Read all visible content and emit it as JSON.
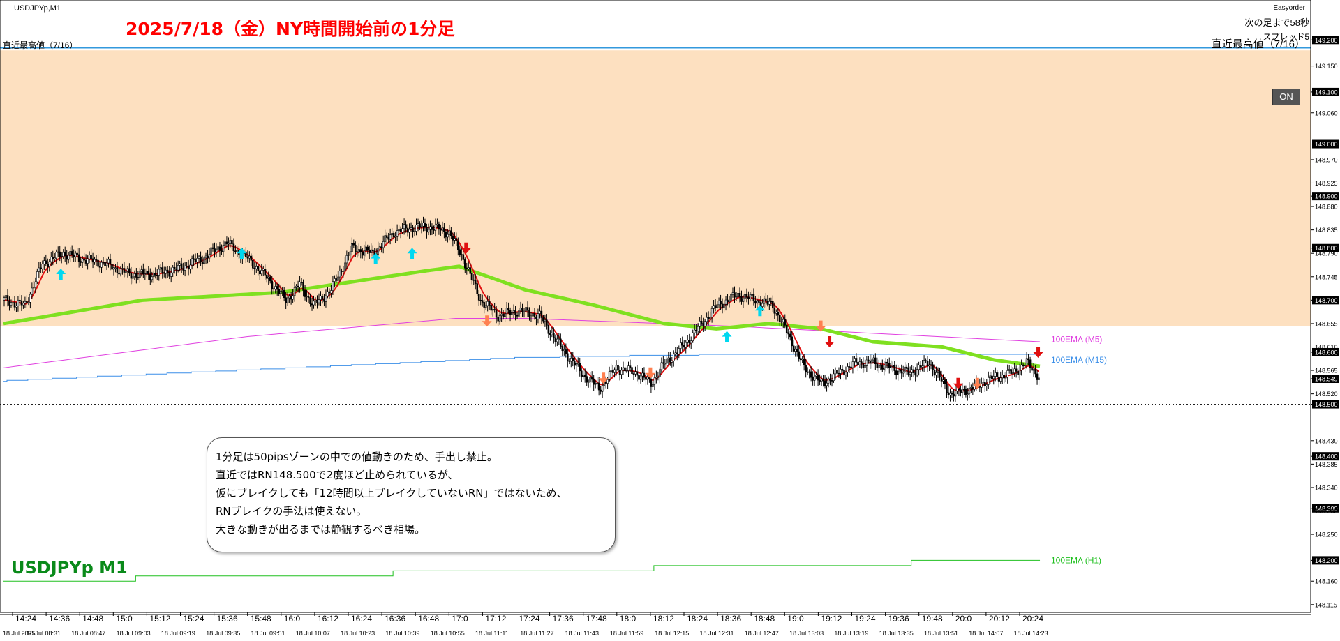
{
  "header": {
    "symbol_tf": "USDJPYp,M1",
    "title_note": "2025/7/18（金）NY時間開始前の1分足",
    "easyorder": "Easyorder",
    "countdown": "次の足まで58秒",
    "spread": "スプレッド5",
    "recent_high_left": "直近最高値（7/16）",
    "recent_high_right": "直近最高値（7/16）",
    "on_button": "ON"
  },
  "symbol_label": "USDJPYp M1",
  "note": {
    "lines": [
      "1分足は50pipsゾーンの中での値動きのため、手出し禁止。",
      "直近ではRN148.500で2度ほど止められているが、",
      "仮にブレイクしても「12時間以上ブレイクしていないRN」ではないため、",
      "RNブレイクの手法は使えない。",
      "大きな動きが出るまでは静観するべき相場。"
    ]
  },
  "colors": {
    "zone": "#fde0c0",
    "ema_m1": "#7fe020",
    "signal": "#e01010",
    "ema_m5": "#e040e0",
    "ema_m15": "#3a8ee8",
    "ema_h1": "#20c020",
    "up_arrow": "#00d8f0",
    "down_arrow": "#ff8050",
    "down_arrow_strong": "#e01010",
    "highline": "#3399dd"
  },
  "chart_data": {
    "type": "candlestick",
    "y_axis_ticks": [
      "149.200",
      "149.150",
      "149.100",
      "149.060",
      "149.000",
      "148.970",
      "148.925",
      "148.900",
      "148.880",
      "148.835",
      "148.800",
      "148.790",
      "148.745",
      "148.700",
      "148.655",
      "148.610",
      "148.600",
      "148.565",
      "148.549",
      "148.520",
      "148.500",
      "148.430",
      "148.400",
      "148.385",
      "148.340",
      "148.300",
      "148.295",
      "148.250",
      "148.200",
      "148.160",
      "148.115"
    ],
    "highlighted_prices": [
      "149.200",
      "149.100",
      "149.000",
      "148.900",
      "148.800",
      "148.700",
      "148.600",
      "148.549",
      "148.500",
      "148.400",
      "148.300",
      "148.200"
    ],
    "x_axis_top": [
      "14:24",
      "14:36",
      "14:48",
      "15:0",
      "15:12",
      "15:24",
      "15:36",
      "15:48",
      "16:0",
      "16:12",
      "16:24",
      "16:36",
      "16:48",
      "17:0",
      "17:12",
      "17:24",
      "17:36",
      "17:48",
      "18:0",
      "18:12",
      "18:24",
      "18:36",
      "18:48",
      "19:0",
      "19:12",
      "19:24",
      "19:36",
      "19:48",
      "20:0",
      "20:12",
      "20:24"
    ],
    "x_axis_bottom": [
      "18 Jul 2025",
      "18 Jul 08:31",
      "18 Jul 08:47",
      "18 Jul 09:03",
      "18 Jul 09:19",
      "18 Jul 09:35",
      "18 Jul 09:51",
      "18 Jul 10:07",
      "18 Jul 10:23",
      "18 Jul 10:39",
      "18 Jul 10:55",
      "18 Jul 11:11",
      "18 Jul 11:27",
      "18 Jul 11:43",
      "18 Jul 11:59",
      "18 Jul 12:15",
      "18 Jul 12:31",
      "18 Jul 12:47",
      "18 Jul 13:03",
      "18 Jul 13:19",
      "18 Jul 13:35",
      "18 Jul 13:51",
      "18 Jul 14:07",
      "18 Jul 14:23"
    ],
    "ylim": [
      148.1,
      149.25
    ],
    "zone": [
      148.65,
      149.18
    ],
    "hlines": {
      "recent_high": 149.185,
      "dotted": [
        149.0,
        148.5
      ]
    },
    "price_path": {
      "x_idx": [
        0,
        12,
        22,
        34,
        44,
        58,
        72,
        86,
        100,
        114,
        128,
        140,
        152,
        162,
        170,
        178,
        188,
        200,
        212,
        224,
        236,
        246,
        256,
        264,
        274,
        284,
        296,
        308,
        320,
        332,
        342,
        352,
        364,
        372,
        380,
        390,
        400,
        410,
        422,
        432,
        442,
        450,
        460,
        470,
        480,
        490,
        500,
        510,
        520,
        532,
        544,
        556,
        568,
        580,
        588,
        596
      ],
      "close": [
        148.7,
        148.69,
        148.77,
        148.79,
        148.78,
        148.77,
        148.75,
        148.75,
        148.76,
        148.78,
        148.81,
        148.78,
        148.74,
        148.7,
        148.73,
        148.69,
        148.72,
        148.8,
        148.79,
        148.83,
        148.84,
        148.84,
        148.83,
        148.78,
        148.7,
        148.67,
        148.68,
        148.67,
        148.61,
        148.56,
        148.53,
        148.57,
        148.56,
        148.54,
        148.58,
        148.61,
        148.65,
        148.69,
        148.71,
        148.7,
        148.69,
        148.64,
        148.57,
        148.54,
        148.56,
        148.58,
        148.58,
        148.57,
        148.56,
        148.58,
        148.52,
        148.53,
        148.55,
        148.56,
        148.58,
        148.55
      ]
    },
    "series": [
      {
        "name": "100EMA (M5)",
        "x_idx": [
          0,
          140,
          260,
          300,
          420,
          596
        ],
        "values": [
          148.57,
          148.63,
          148.665,
          148.665,
          148.65,
          148.62
        ]
      },
      {
        "name": "100EMA (M15)",
        "x_idx": [
          0,
          100,
          200,
          300,
          400,
          500,
          596
        ],
        "values": [
          148.545,
          148.56,
          148.575,
          148.59,
          148.595,
          148.595,
          148.595
        ]
      },
      {
        "name": "100EMA (H1)",
        "x_idx": [
          0,
          596
        ],
        "values": [
          148.16,
          148.2
        ]
      },
      {
        "name": "EMA (M1)",
        "x_idx": [
          0,
          80,
          160,
          240,
          262,
          300,
          340,
          380,
          410,
          440,
          470,
          500,
          540,
          570,
          596
        ],
        "values": [
          148.655,
          148.7,
          148.715,
          148.755,
          148.765,
          148.72,
          148.69,
          148.655,
          148.645,
          148.655,
          148.645,
          148.62,
          148.61,
          148.585,
          148.573
        ]
      }
    ],
    "arrows": {
      "up": [
        [
          33,
          148.75
        ],
        [
          137,
          148.79
        ],
        [
          214,
          148.78
        ],
        [
          235,
          148.79
        ],
        [
          416,
          148.63
        ],
        [
          435,
          148.68
        ]
      ],
      "down": [
        [
          278,
          148.66
        ],
        [
          345,
          148.55
        ],
        [
          372,
          148.56
        ],
        [
          470,
          148.65
        ],
        [
          560,
          148.54
        ]
      ],
      "down_strong": [
        [
          266,
          148.8
        ],
        [
          475,
          148.62
        ],
        [
          549,
          148.54
        ],
        [
          595,
          148.6
        ]
      ]
    },
    "series_labels": [
      "100EMA (M5)",
      "100EMA (M15)",
      "100EMA (H1)"
    ]
  }
}
